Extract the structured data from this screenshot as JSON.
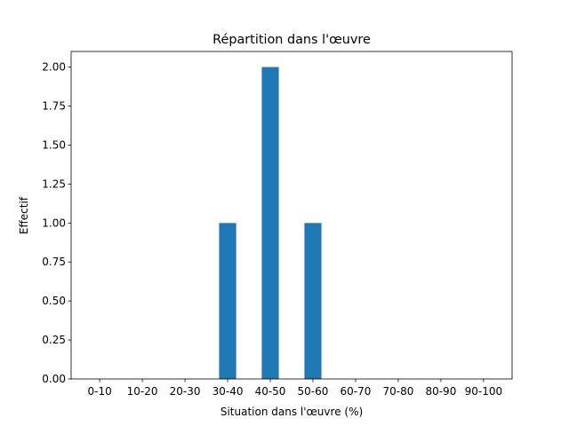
{
  "chart_data": {
    "type": "bar",
    "title": "Répartition dans l'œuvre",
    "xlabel": "Situation dans l'œuvre (%)",
    "ylabel": "Effectif",
    "categories": [
      "0-10",
      "10-20",
      "20-30",
      "30-40",
      "40-50",
      "50-60",
      "60-70",
      "70-80",
      "80-90",
      "90-100"
    ],
    "values": [
      0,
      0,
      0,
      1,
      2,
      1,
      0,
      0,
      0,
      0
    ],
    "color": "#1f77b4",
    "ylim": [
      0,
      2.1
    ],
    "yticks": [
      {
        "value": 0,
        "label": "0.00"
      },
      {
        "value": 0.25,
        "label": "0.25"
      },
      {
        "value": 0.5,
        "label": "0.50"
      },
      {
        "value": 0.75,
        "label": "0.75"
      },
      {
        "value": 1,
        "label": "1.00"
      },
      {
        "value": 1.25,
        "label": "1.25"
      },
      {
        "value": 1.5,
        "label": "1.50"
      },
      {
        "value": 1.75,
        "label": "1.75"
      },
      {
        "value": 2,
        "label": "2.00"
      }
    ],
    "grid": false
  }
}
